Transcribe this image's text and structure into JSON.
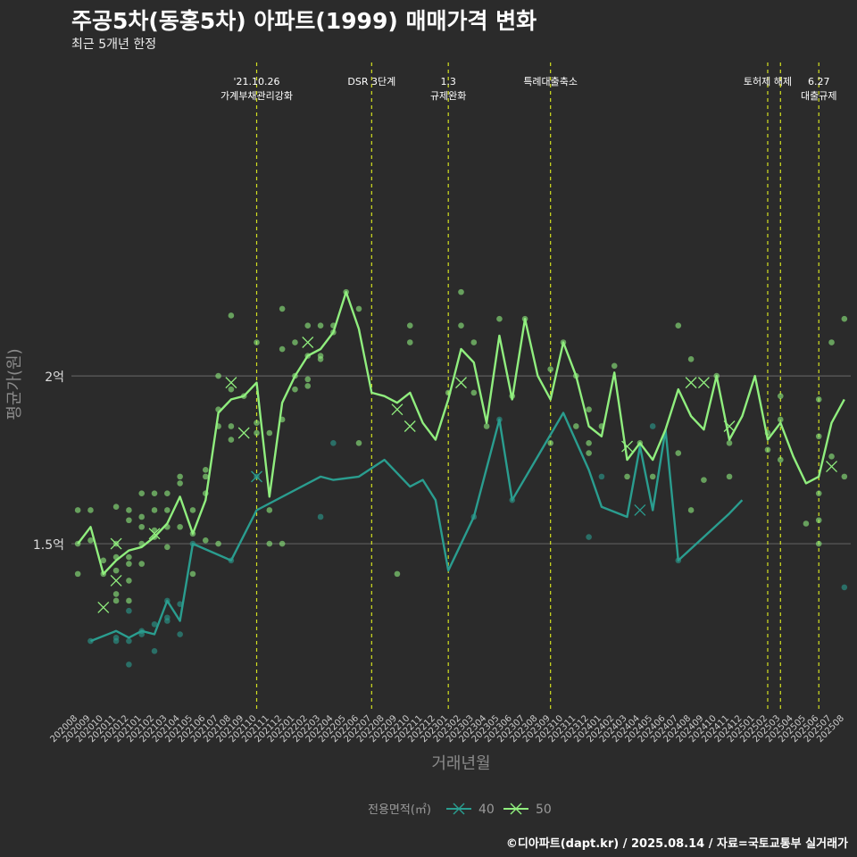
{
  "chart_data": {
    "type": "line",
    "title": "주공5차(동홍5차) 아파트(1999) 매매가격 변화",
    "subtitle": "최근 5개년 한정",
    "xlabel": "거래년월",
    "ylabel": "평균가(원)",
    "caption": "©디아파트(dapt.kr) / 2025.08.14 / 자료=국토교통부 실거래가",
    "legend": {
      "title": "전용면적(㎡)",
      "position": "bottom"
    },
    "ylim": [
      1.0,
      2.95
    ],
    "y_ticks": [
      {
        "v": 1.5,
        "label": "1.5억"
      },
      {
        "v": 2.0,
        "label": "2억"
      }
    ],
    "grid": true,
    "categories": [
      "202008",
      "202009",
      "202010",
      "202011",
      "202012",
      "202101",
      "202102",
      "202103",
      "202104",
      "202105",
      "202106",
      "202107",
      "202108",
      "202109",
      "202110",
      "202111",
      "202112",
      "202201",
      "202202",
      "202203",
      "202204",
      "202205",
      "202206",
      "202207",
      "202208",
      "202209",
      "202210",
      "202211",
      "202212",
      "202301",
      "202302",
      "202303",
      "202304",
      "202305",
      "202306",
      "202307",
      "202308",
      "202309",
      "202310",
      "202311",
      "202312",
      "202401",
      "202402",
      "202403",
      "202404",
      "202405",
      "202406",
      "202407",
      "202408",
      "202409",
      "202410",
      "202411",
      "202412",
      "202501",
      "202502",
      "202503",
      "202504",
      "202505",
      "202506",
      "202507",
      "202508"
    ],
    "events": [
      {
        "x": "202110",
        "lines": [
          "'21.10.26",
          "가계부채관리강화"
        ]
      },
      {
        "x": "202207",
        "lines": [
          "DSR 3단계"
        ]
      },
      {
        "x": "202301",
        "lines": [
          "1.3",
          "규제완화"
        ]
      },
      {
        "x": "202309",
        "lines": [
          "특례대출축소"
        ]
      },
      {
        "x": "202502",
        "lines": [
          "토허제 해제"
        ]
      },
      {
        "x": "202503",
        "lines": []
      },
      {
        "x": "202506",
        "lines": [
          "6.27",
          "대출규제"
        ]
      }
    ],
    "series": [
      {
        "name": "40",
        "color": "#2a9d8f",
        "line": [
          [
            "202009",
            1.21
          ],
          [
            "202011",
            1.24
          ],
          [
            "202012",
            1.22
          ],
          [
            "202101",
            1.24
          ],
          [
            "202102",
            1.23
          ],
          [
            "202103",
            1.33
          ],
          [
            "202104",
            1.27
          ],
          [
            "202105",
            1.5
          ],
          [
            "202108",
            1.45
          ],
          [
            "202110",
            1.6
          ],
          [
            "202203",
            1.7
          ],
          [
            "202204",
            1.69
          ],
          [
            "202206",
            1.7
          ],
          [
            "202208",
            1.75
          ],
          [
            "202210",
            1.67
          ],
          [
            "202211",
            1.69
          ],
          [
            "202212",
            1.63
          ],
          [
            "202301",
            1.42
          ],
          [
            "202303",
            1.58
          ],
          [
            "202305",
            1.87
          ],
          [
            "202306",
            1.63
          ],
          [
            "202310",
            1.89
          ],
          [
            "202312",
            1.72
          ],
          [
            "202401",
            1.61
          ],
          [
            "202403",
            1.58
          ],
          [
            "202404",
            1.79
          ],
          [
            "202405",
            1.6
          ],
          [
            "202406",
            1.84
          ],
          [
            "202407",
            1.45
          ],
          [
            "202411",
            1.59
          ],
          [
            "202412",
            1.63
          ]
        ],
        "points": [
          [
            "202009",
            1.21
          ],
          [
            "202011",
            1.22
          ],
          [
            "202011",
            1.21
          ],
          [
            "202012",
            1.3
          ],
          [
            "202012",
            1.21
          ],
          [
            "202012",
            1.14
          ],
          [
            "202101",
            1.23
          ],
          [
            "202101",
            1.24
          ],
          [
            "202102",
            1.18
          ],
          [
            "202102",
            1.26
          ],
          [
            "202103",
            1.28
          ],
          [
            "202103",
            1.27
          ],
          [
            "202103",
            1.33
          ],
          [
            "202104",
            1.23
          ],
          [
            "202104",
            1.32
          ],
          [
            "202105",
            1.5
          ],
          [
            "202108",
            1.45
          ],
          [
            "202110",
            1.7
          ],
          [
            "202203",
            1.58
          ],
          [
            "202204",
            1.8
          ],
          [
            "202303",
            1.58
          ],
          [
            "202305",
            1.87
          ],
          [
            "202306",
            1.63
          ],
          [
            "202312",
            1.52
          ],
          [
            "202401",
            1.7
          ],
          [
            "202405",
            1.85
          ],
          [
            "202407",
            1.45
          ],
          [
            "202508",
            1.37
          ]
        ],
        "markers": [
          [
            "202110",
            1.7
          ],
          [
            "202404",
            1.6
          ]
        ]
      },
      {
        "name": "50",
        "color": "#90ee7e",
        "line": [
          [
            "202008",
            1.5
          ],
          [
            "202009",
            1.55
          ],
          [
            "202010",
            1.41
          ],
          [
            "202011",
            1.45
          ],
          [
            "202012",
            1.48
          ],
          [
            "202101",
            1.49
          ],
          [
            "202102",
            1.52
          ],
          [
            "202103",
            1.56
          ],
          [
            "202104",
            1.64
          ],
          [
            "202105",
            1.53
          ],
          [
            "202106",
            1.63
          ],
          [
            "202107",
            1.89
          ],
          [
            "202108",
            1.93
          ],
          [
            "202109",
            1.94
          ],
          [
            "202110",
            1.98
          ],
          [
            "202111",
            1.64
          ],
          [
            "202112",
            1.92
          ],
          [
            "202201",
            2.0
          ],
          [
            "202202",
            2.06
          ],
          [
            "202203",
            2.08
          ],
          [
            "202204",
            2.13
          ],
          [
            "202205",
            2.25
          ],
          [
            "202206",
            2.14
          ],
          [
            "202207",
            1.95
          ],
          [
            "202208",
            1.94
          ],
          [
            "202209",
            1.92
          ],
          [
            "202210",
            1.95
          ],
          [
            "202211",
            1.86
          ],
          [
            "202212",
            1.81
          ],
          [
            "202301",
            1.93
          ],
          [
            "202302",
            2.08
          ],
          [
            "202303",
            2.04
          ],
          [
            "202304",
            1.86
          ],
          [
            "202305",
            2.12
          ],
          [
            "202306",
            1.93
          ],
          [
            "202307",
            2.17
          ],
          [
            "202308",
            2.0
          ],
          [
            "202309",
            1.93
          ],
          [
            "202310",
            2.1
          ],
          [
            "202311",
            2.0
          ],
          [
            "202312",
            1.85
          ],
          [
            "202401",
            1.82
          ],
          [
            "202402",
            2.01
          ],
          [
            "202403",
            1.75
          ],
          [
            "202404",
            1.8
          ],
          [
            "202405",
            1.75
          ],
          [
            "202406",
            1.84
          ],
          [
            "202407",
            1.96
          ],
          [
            "202408",
            1.88
          ],
          [
            "202409",
            1.84
          ],
          [
            "202410",
            2.0
          ],
          [
            "202411",
            1.81
          ],
          [
            "202412",
            1.88
          ],
          [
            "202501",
            2.0
          ],
          [
            "202502",
            1.81
          ],
          [
            "202503",
            1.86
          ],
          [
            "202504",
            1.76
          ],
          [
            "202505",
            1.68
          ],
          [
            "202506",
            1.7
          ],
          [
            "202507",
            1.86
          ],
          [
            "202508",
            1.93
          ]
        ],
        "points": [
          [
            "202008",
            1.5
          ],
          [
            "202008",
            1.6
          ],
          [
            "202008",
            1.41
          ],
          [
            "202009",
            1.6
          ],
          [
            "202009",
            1.51
          ],
          [
            "202010",
            1.45
          ],
          [
            "202010",
            1.41
          ],
          [
            "202011",
            1.61
          ],
          [
            "202011",
            1.5
          ],
          [
            "202011",
            1.46
          ],
          [
            "202011",
            1.42
          ],
          [
            "202011",
            1.35
          ],
          [
            "202011",
            1.33
          ],
          [
            "202012",
            1.6
          ],
          [
            "202012",
            1.57
          ],
          [
            "202012",
            1.46
          ],
          [
            "202012",
            1.44
          ],
          [
            "202012",
            1.39
          ],
          [
            "202012",
            1.33
          ],
          [
            "202101",
            1.65
          ],
          [
            "202101",
            1.58
          ],
          [
            "202101",
            1.55
          ],
          [
            "202101",
            1.5
          ],
          [
            "202101",
            1.44
          ],
          [
            "202102",
            1.65
          ],
          [
            "202102",
            1.6
          ],
          [
            "202102",
            1.54
          ],
          [
            "202102",
            1.52
          ],
          [
            "202103",
            1.65
          ],
          [
            "202103",
            1.6
          ],
          [
            "202103",
            1.55
          ],
          [
            "202103",
            1.49
          ],
          [
            "202104",
            1.7
          ],
          [
            "202104",
            1.68
          ],
          [
            "202104",
            1.55
          ],
          [
            "202105",
            1.6
          ],
          [
            "202105",
            1.53
          ],
          [
            "202105",
            1.41
          ],
          [
            "202106",
            1.72
          ],
          [
            "202106",
            1.7
          ],
          [
            "202106",
            1.65
          ],
          [
            "202106",
            1.51
          ],
          [
            "202107",
            2.0
          ],
          [
            "202107",
            1.9
          ],
          [
            "202107",
            1.85
          ],
          [
            "202107",
            1.5
          ],
          [
            "202108",
            2.18
          ],
          [
            "202108",
            1.96
          ],
          [
            "202108",
            1.85
          ],
          [
            "202108",
            1.81
          ],
          [
            "202109",
            1.94
          ],
          [
            "202110",
            2.1
          ],
          [
            "202110",
            1.86
          ],
          [
            "202110",
            1.83
          ],
          [
            "202111",
            1.83
          ],
          [
            "202111",
            1.6
          ],
          [
            "202111",
            1.5
          ],
          [
            "202112",
            2.2
          ],
          [
            "202112",
            2.08
          ],
          [
            "202112",
            1.87
          ],
          [
            "202112",
            1.5
          ],
          [
            "202201",
            2.1
          ],
          [
            "202201",
            2.0
          ],
          [
            "202201",
            1.96
          ],
          [
            "202202",
            2.15
          ],
          [
            "202202",
            2.06
          ],
          [
            "202202",
            1.99
          ],
          [
            "202202",
            1.97
          ],
          [
            "202203",
            2.15
          ],
          [
            "202203",
            2.06
          ],
          [
            "202203",
            2.05
          ],
          [
            "202204",
            2.15
          ],
          [
            "202204",
            2.13
          ],
          [
            "202205",
            2.25
          ],
          [
            "202206",
            2.2
          ],
          [
            "202206",
            1.8
          ],
          [
            "202209",
            1.41
          ],
          [
            "202210",
            2.15
          ],
          [
            "202210",
            2.1
          ],
          [
            "202301",
            1.95
          ],
          [
            "202302",
            2.25
          ],
          [
            "202302",
            2.15
          ],
          [
            "202303",
            2.1
          ],
          [
            "202303",
            1.95
          ],
          [
            "202304",
            1.85
          ],
          [
            "202305",
            2.17
          ],
          [
            "202306",
            1.94
          ],
          [
            "202307",
            2.17
          ],
          [
            "202309",
            2.02
          ],
          [
            "202309",
            1.8
          ],
          [
            "202310",
            2.1
          ],
          [
            "202311",
            2.0
          ],
          [
            "202311",
            1.85
          ],
          [
            "202312",
            1.9
          ],
          [
            "202312",
            1.8
          ],
          [
            "202312",
            1.77
          ],
          [
            "202401",
            1.85
          ],
          [
            "202402",
            2.03
          ],
          [
            "202403",
            1.7
          ],
          [
            "202404",
            1.8
          ],
          [
            "202405",
            1.7
          ],
          [
            "202407",
            2.15
          ],
          [
            "202407",
            1.77
          ],
          [
            "202408",
            2.05
          ],
          [
            "202408",
            1.6
          ],
          [
            "202409",
            1.69
          ],
          [
            "202410",
            2.0
          ],
          [
            "202411",
            1.8
          ],
          [
            "202411",
            1.7
          ],
          [
            "202502",
            1.83
          ],
          [
            "202502",
            1.78
          ],
          [
            "202503",
            1.94
          ],
          [
            "202503",
            1.87
          ],
          [
            "202503",
            1.75
          ],
          [
            "202505",
            1.56
          ],
          [
            "202506",
            1.93
          ],
          [
            "202506",
            1.82
          ],
          [
            "202506",
            1.57
          ],
          [
            "202506",
            1.5
          ],
          [
            "202506",
            1.65
          ],
          [
            "202507",
            2.1
          ],
          [
            "202507",
            1.76
          ],
          [
            "202508",
            2.17
          ],
          [
            "202508",
            1.7
          ]
        ],
        "markers": [
          [
            "202010",
            1.31
          ],
          [
            "202011",
            1.5
          ],
          [
            "202011",
            1.39
          ],
          [
            "202102",
            1.53
          ],
          [
            "202108",
            1.98
          ],
          [
            "202109",
            1.83
          ],
          [
            "202202",
            2.1
          ],
          [
            "202209",
            1.9
          ],
          [
            "202210",
            1.85
          ],
          [
            "202302",
            1.98
          ],
          [
            "202403",
            1.79
          ],
          [
            "202408",
            1.98
          ],
          [
            "202409",
            1.98
          ],
          [
            "202411",
            1.85
          ],
          [
            "202507",
            1.73
          ]
        ]
      }
    ]
  }
}
